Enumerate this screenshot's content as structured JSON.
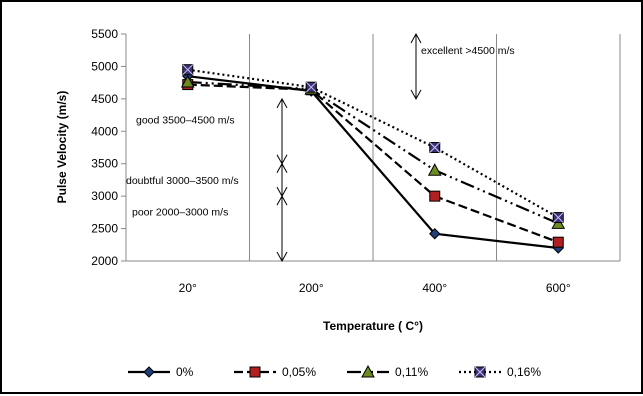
{
  "chart_data": {
    "type": "line",
    "title": "",
    "xlabel": "Temperature ( C°)",
    "ylabel": "Pulse Velocity (m/s)",
    "categories": [
      "20°",
      "200°",
      "400°",
      "600°"
    ],
    "ylim": [
      2000,
      5500
    ],
    "yticks": [
      2000,
      2500,
      3000,
      3500,
      4000,
      4500,
      5000,
      5500
    ],
    "grid": "vertical",
    "legend": "bottom",
    "series": [
      {
        "name": "0%",
        "values": [
          4850,
          4620,
          2420,
          2200
        ],
        "color": "#000000",
        "marker": "diamond",
        "fill": "#1f3f7a",
        "dash": ""
      },
      {
        "name": "0,05%",
        "values": [
          4720,
          4640,
          3000,
          2290
        ],
        "color": "#000000",
        "marker": "square",
        "fill": "#b02020",
        "dash": "9,4"
      },
      {
        "name": "0,11%",
        "values": [
          4760,
          4650,
          3400,
          2580
        ],
        "color": "#000000",
        "marker": "triangle",
        "fill": "#6d8c1f",
        "dash": "14,4,2,4,2,4"
      },
      {
        "name": "0,16%",
        "values": [
          4950,
          4680,
          3750,
          2670
        ],
        "color": "#000000",
        "marker": "xsquare",
        "fill": "#3b3070",
        "dash": "2,3"
      }
    ],
    "annotations": [
      {
        "text": "excellent >4500 m/s",
        "range": [
          4500,
          5500
        ]
      },
      {
        "text": "good 3500–4500 m/s",
        "range": [
          3500,
          4500
        ]
      },
      {
        "text": "doubtful 3000–3500 m/s",
        "range": [
          3000,
          3500
        ]
      },
      {
        "text": "poor 2000–3000 m/s",
        "range": [
          2000,
          3000
        ]
      }
    ]
  }
}
